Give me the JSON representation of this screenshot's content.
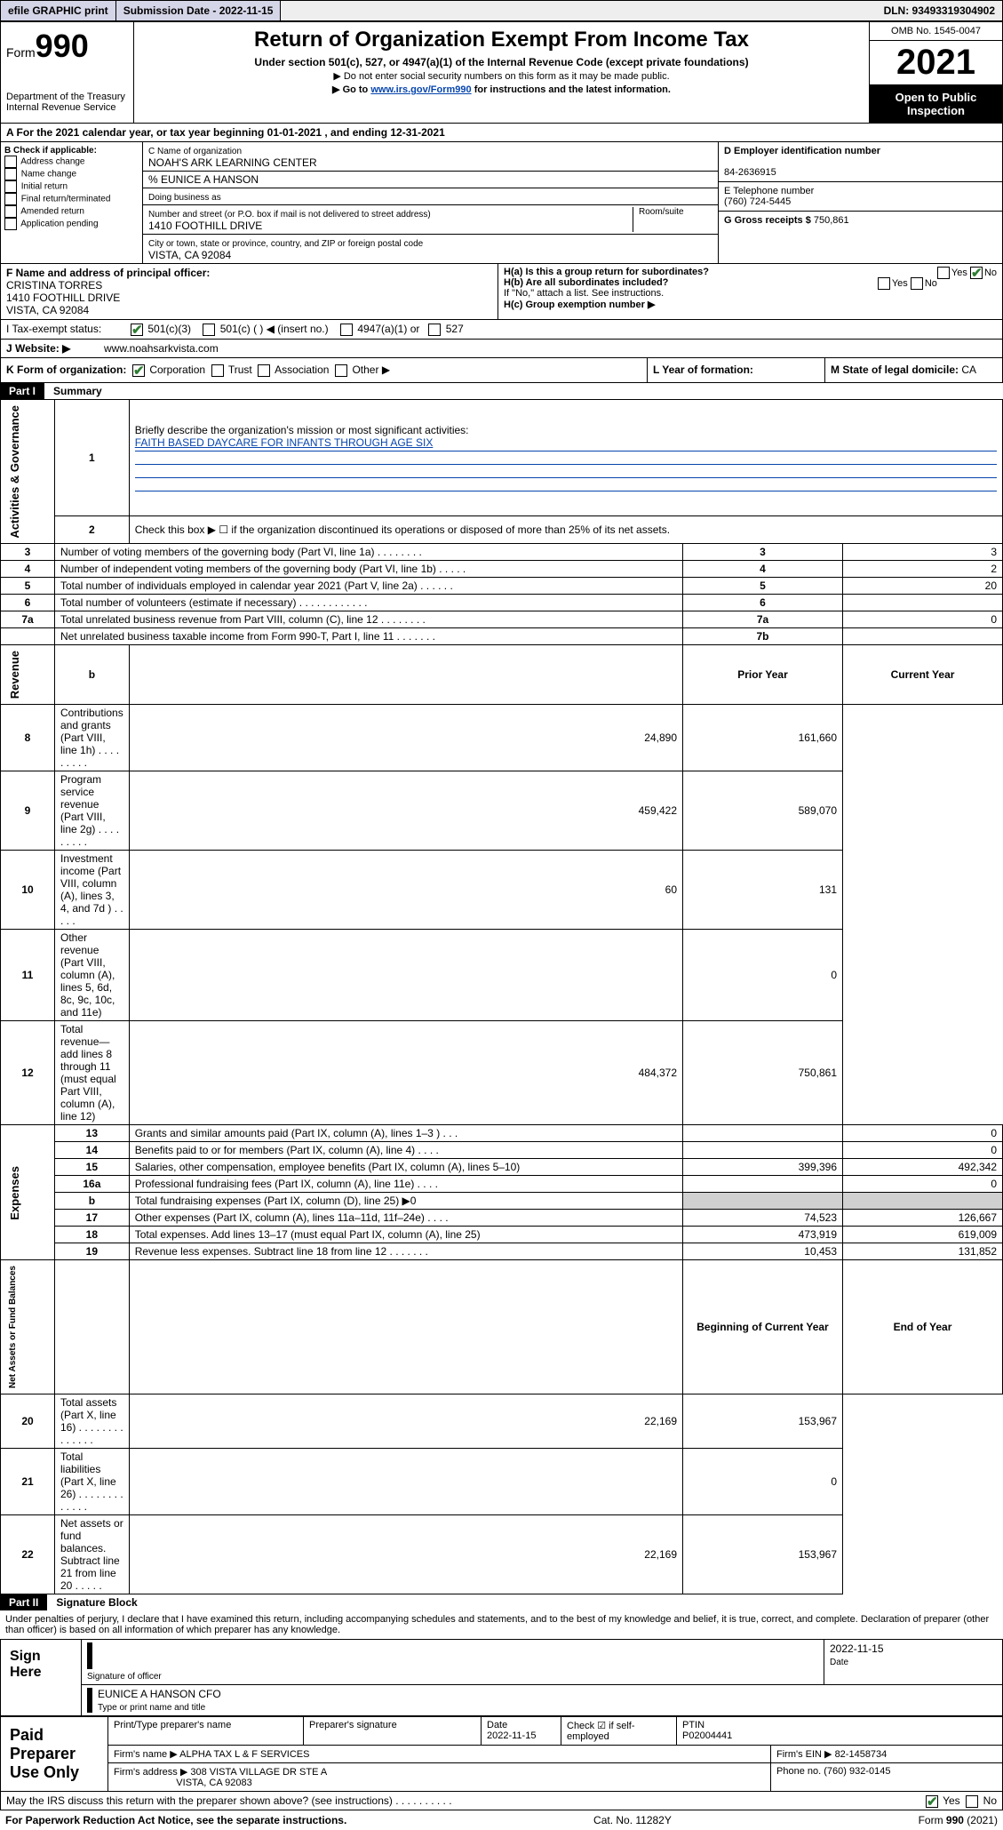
{
  "topbar": {
    "efile": "efile GRAPHIC print",
    "submission_label": "Submission Date - 2022-11-15",
    "dln": "DLN: 93493319304902"
  },
  "form_header": {
    "form_label": "Form",
    "form_number": "990",
    "dept": "Department of the Treasury",
    "irs": "Internal Revenue Service",
    "title": "Return of Organization Exempt From Income Tax",
    "subtitle": "Under section 501(c), 527, or 4947(a)(1) of the Internal Revenue Code (except private foundations)",
    "note1": "▶ Do not enter social security numbers on this form as it may be made public.",
    "note2_pre": "▶ Go to ",
    "note2_link": "www.irs.gov/Form990",
    "note2_post": " for instructions and the latest information.",
    "omb": "OMB No. 1545-0047",
    "year": "2021",
    "inspection": "Open to Public Inspection"
  },
  "period": {
    "line": "A For the 2021 calendar year, or tax year beginning 01-01-2021   , and ending 12-31-2021"
  },
  "box_b": {
    "header": "B Check if applicable:",
    "items": [
      "Address change",
      "Name change",
      "Initial return",
      "Final return/terminated",
      "Amended return",
      "Application pending"
    ]
  },
  "box_c": {
    "name_label": "C Name of organization",
    "name": "NOAH'S ARK LEARNING CENTER",
    "care_of": "% EUNICE A HANSON",
    "dba_label": "Doing business as",
    "street_label": "Number and street (or P.O. box if mail is not delivered to street address)",
    "room_label": "Room/suite",
    "street": "1410 FOOTHILL DRIVE",
    "city_label": "City or town, state or province, country, and ZIP or foreign postal code",
    "city": "VISTA, CA  92084"
  },
  "box_d": {
    "label": "D Employer identification number",
    "value": "84-2636915"
  },
  "box_e": {
    "label": "E Telephone number",
    "value": "(760) 724-5445"
  },
  "box_g": {
    "label": "G Gross receipts $",
    "value": "750,861"
  },
  "box_f": {
    "label": "F Name and address of principal officer:",
    "name": "CRISTINA TORRES",
    "street": "1410 FOOTHILL DRIVE",
    "city": "VISTA, CA  92084"
  },
  "box_h": {
    "ha": "H(a)  Is this a group return for subordinates?",
    "hb": "H(b)  Are all subordinates included?",
    "hb_note": "If \"No,\" attach a list. See instructions.",
    "hc": "H(c)  Group exemption number ▶",
    "yes": "Yes",
    "no": "No"
  },
  "box_i": {
    "label": "I   Tax-exempt status:",
    "c3": "501(c)(3)",
    "c": "501(c) (  ) ◀ (insert no.)",
    "a1": "4947(a)(1) or",
    "527": "527"
  },
  "box_j": {
    "label": "J   Website: ▶",
    "value": "www.noahsarkvista.com"
  },
  "box_k": {
    "label": "K Form of organization:",
    "corp": "Corporation",
    "trust": "Trust",
    "assoc": "Association",
    "other": "Other ▶"
  },
  "box_l": {
    "label": "L Year of formation:"
  },
  "box_m": {
    "label": "M State of legal domicile: ",
    "value": "CA"
  },
  "part1": {
    "tag": "Part I",
    "title": "Summary"
  },
  "summary": {
    "line1_label": "Briefly describe the organization's mission or most significant activities:",
    "line1_value": "FAITH BASED DAYCARE FOR INFANTS THROUGH AGE SIX",
    "line2": "Check this box ▶ ☐  if the organization discontinued its operations or disposed of more than 25% of its net assets.",
    "rows_gov": [
      {
        "n": "3",
        "label": "Number of voting members of the governing body (Part VI, line 1a)   .    .    .    .    .    .    .    .",
        "box": "3",
        "val": "3"
      },
      {
        "n": "4",
        "label": "Number of independent voting members of the governing body (Part VI, line 1b)   .    .    .    .    .",
        "box": "4",
        "val": "2"
      },
      {
        "n": "5",
        "label": "Total number of individuals employed in calendar year 2021 (Part V, line 2a)   .    .    .    .    .    .",
        "box": "5",
        "val": "20"
      },
      {
        "n": "6",
        "label": "Total number of volunteers (estimate if necessary)   .    .    .    .    .    .    .    .    .    .    .    .",
        "box": "6",
        "val": ""
      },
      {
        "n": "7a",
        "label": "Total unrelated business revenue from Part VIII, column (C), line 12   .    .    .    .    .    .    .    .",
        "box": "7a",
        "val": "0"
      },
      {
        "n": "",
        "label": "Net unrelated business taxable income from Form 990-T, Part I, line 11   .    .    .    .    .    .    .",
        "box": "7b",
        "val": ""
      }
    ],
    "col_headers": {
      "b": "b",
      "prior": "Prior Year",
      "current": "Current Year"
    },
    "rows_rev": [
      {
        "n": "8",
        "label": "Contributions and grants (Part VIII, line 1h)   .    .    .    .    .    .    .    .    .",
        "p": "24,890",
        "c": "161,660"
      },
      {
        "n": "9",
        "label": "Program service revenue (Part VIII, line 2g)   .    .    .    .    .    .    .    .    .",
        "p": "459,422",
        "c": "589,070"
      },
      {
        "n": "10",
        "label": "Investment income (Part VIII, column (A), lines 3, 4, and 7d )   .    .    .    .    .",
        "p": "60",
        "c": "131"
      },
      {
        "n": "11",
        "label": "Other revenue (Part VIII, column (A), lines 5, 6d, 8c, 9c, 10c, and 11e)",
        "p": "",
        "c": "0"
      },
      {
        "n": "12",
        "label": "Total revenue—add lines 8 through 11 (must equal Part VIII, column (A), line 12)",
        "p": "484,372",
        "c": "750,861"
      }
    ],
    "rows_exp": [
      {
        "n": "13",
        "label": "Grants and similar amounts paid (Part IX, column (A), lines 1–3 )   .    .    .",
        "p": "",
        "c": "0"
      },
      {
        "n": "14",
        "label": "Benefits paid to or for members (Part IX, column (A), line 4)   .    .    .    .",
        "p": "",
        "c": "0"
      },
      {
        "n": "15",
        "label": "Salaries, other compensation, employee benefits (Part IX, column (A), lines 5–10)",
        "p": "399,396",
        "c": "492,342"
      },
      {
        "n": "16a",
        "label": "Professional fundraising fees (Part IX, column (A), line 11e)   .    .    .    .",
        "p": "",
        "c": "0"
      },
      {
        "n": "b",
        "label": "Total fundraising expenses (Part IX, column (D), line 25) ▶0",
        "p": null,
        "c": null,
        "shade": true
      },
      {
        "n": "17",
        "label": "Other expenses (Part IX, column (A), lines 11a–11d, 11f–24e)   .    .    .    .",
        "p": "74,523",
        "c": "126,667"
      },
      {
        "n": "18",
        "label": "Total expenses. Add lines 13–17 (must equal Part IX, column (A), line 25)",
        "p": "473,919",
        "c": "619,009"
      },
      {
        "n": "19",
        "label": "Revenue less expenses. Subtract line 18 from line 12   .    .    .    .    .    .    .",
        "p": "10,453",
        "c": "131,852"
      }
    ],
    "net_headers": {
      "begin": "Beginning of Current Year",
      "end": "End of Year"
    },
    "rows_net": [
      {
        "n": "20",
        "label": "Total assets (Part X, line 16)   .    .    .    .    .    .    .    .    .    .    .    .    .    .",
        "p": "22,169",
        "c": "153,967"
      },
      {
        "n": "21",
        "label": "Total liabilities (Part X, line 26)   .    .    .    .    .    .    .    .    .    .    .    .    .",
        "p": "",
        "c": "0"
      },
      {
        "n": "22",
        "label": "Net assets or fund balances. Subtract line 21 from line 20   .    .    .    .    .",
        "p": "22,169",
        "c": "153,967"
      }
    ],
    "side_labels": {
      "gov": "Activities & Governance",
      "rev": "Revenue",
      "exp": "Expenses",
      "net": "Net Assets or Fund Balances"
    }
  },
  "part2": {
    "tag": "Part II",
    "title": "Signature Block"
  },
  "signature": {
    "statement": "Under penalties of perjury, I declare that I have examined this return, including accompanying schedules and statements, and to the best of my knowledge and belief, it is true, correct, and complete. Declaration of preparer (other than officer) is based on all information of which preparer has any knowledge.",
    "sign_here": "Sign Here",
    "sig_officer": "Signature of officer",
    "date": "2022-11-15",
    "date_label": "Date",
    "officer_name": "EUNICE A HANSON CFO",
    "type_name": "Type or print name and title"
  },
  "paid": {
    "title": "Paid Preparer Use Only",
    "print_name_label": "Print/Type preparer's name",
    "sig_label": "Preparer's signature",
    "date_label": "Date",
    "date": "2022-11-15",
    "check_label": "Check ☑ if self-employed",
    "ptin_label": "PTIN",
    "ptin": "P02004441",
    "firm_name_label": "Firm's name    ▶",
    "firm_name": "ALPHA TAX L & F SERVICES",
    "firm_ein_label": "Firm's EIN ▶",
    "firm_ein": "82-1458734",
    "firm_addr_label": "Firm's address ▶",
    "firm_addr1": "308 VISTA VILLAGE DR STE A",
    "firm_addr2": "VISTA, CA  92083",
    "phone_label": "Phone no.",
    "phone": "(760) 932-0145",
    "discuss": "May the IRS discuss this return with the preparer shown above? (see instructions)   .    .    .    .    .    .    .    .    .    .",
    "yes": "Yes",
    "no": "No"
  },
  "footer": {
    "left": "For Paperwork Reduction Act Notice, see the separate instructions.",
    "center": "Cat. No. 11282Y",
    "right": "Form 990 (2021)"
  }
}
